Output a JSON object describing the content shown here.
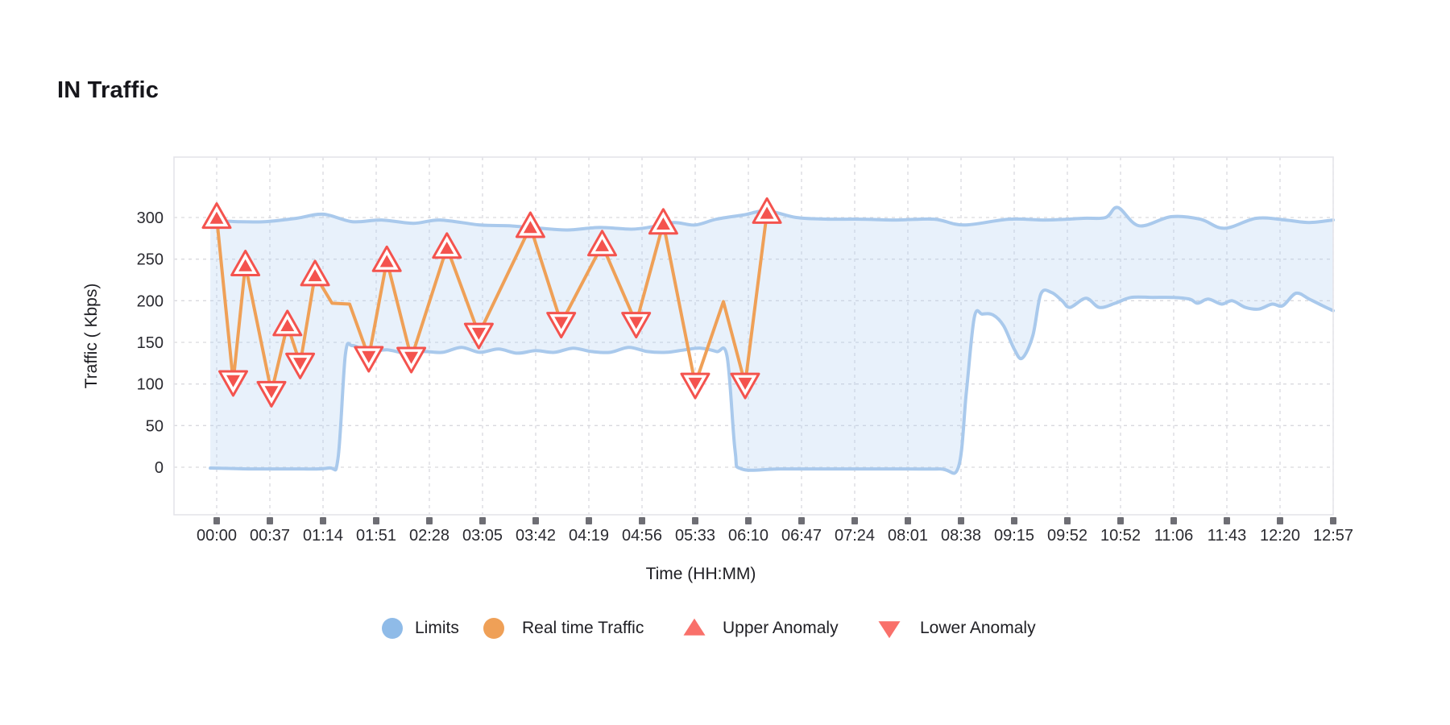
{
  "title": "IN Traffic",
  "legend": {
    "items": [
      {
        "label": "Limits",
        "marker": "circle",
        "color": "#8fbbe8"
      },
      {
        "label": "Real time Traffic",
        "marker": "circle",
        "color": "#efa057"
      },
      {
        "label": "Upper Anomaly",
        "marker": "triangle-up",
        "color": "#f9706a"
      },
      {
        "label": "Lower Anomaly",
        "marker": "triangle-down",
        "color": "#f9706a"
      }
    ]
  },
  "chart_data": {
    "type": "line",
    "title": "IN Traffic",
    "xlabel": "Time (HH:MM)",
    "ylabel": "Traffic ( Kbps)",
    "ylim": [
      0,
      300
    ],
    "grid": true,
    "legend_position": "bottom",
    "y_ticks": [
      300,
      250,
      200,
      150,
      100,
      50,
      0
    ],
    "x_tick_labels": [
      "00:00",
      "00:37",
      "01:14",
      "01:51",
      "02:28",
      "03:05",
      "03:42",
      "04:19",
      "04:56",
      "05:33",
      "06:10",
      "06:47",
      "07:24",
      "08:01",
      "08:38",
      "09:15",
      "09:52",
      "10:52",
      "11:06",
      "11:43",
      "12:20",
      "12:57"
    ],
    "x_unit": "tick-index (0 = first tick)",
    "colors": {
      "band_stroke": "#a9c9ec",
      "band_fill": "rgba(173,205,240,0.28)",
      "line": "#efa057",
      "anomaly": "#f4534e",
      "gridline": "#d9d9de",
      "plot_border": "#e4e4ea",
      "tick_square": "#6e6e74"
    },
    "series": [
      {
        "name": "Limits",
        "kind": "band",
        "upper": [
          [
            -0.12,
            297
          ],
          [
            0.4,
            295
          ],
          [
            0.9,
            295
          ],
          [
            1.5,
            299
          ],
          [
            2.0,
            304
          ],
          [
            2.55,
            295
          ],
          [
            3.1,
            297
          ],
          [
            3.7,
            293
          ],
          [
            4.2,
            297
          ],
          [
            4.95,
            291
          ],
          [
            5.5,
            290
          ],
          [
            6.1,
            287
          ],
          [
            6.6,
            285
          ],
          [
            7.2,
            288
          ],
          [
            7.8,
            286
          ],
          [
            8.2,
            289
          ],
          [
            8.6,
            294
          ],
          [
            9.0,
            291
          ],
          [
            9.4,
            298
          ],
          [
            9.9,
            303
          ],
          [
            10.35,
            308
          ],
          [
            10.9,
            300
          ],
          [
            11.5,
            298
          ],
          [
            12.1,
            298
          ],
          [
            12.8,
            297
          ],
          [
            13.5,
            298
          ],
          [
            14.05,
            291
          ],
          [
            14.9,
            298
          ],
          [
            15.6,
            297
          ],
          [
            16.3,
            299
          ],
          [
            16.72,
            300
          ],
          [
            16.95,
            312
          ],
          [
            17.35,
            290
          ],
          [
            17.95,
            301
          ],
          [
            18.5,
            298
          ],
          [
            18.95,
            287
          ],
          [
            19.55,
            299
          ],
          [
            20.1,
            297
          ],
          [
            20.55,
            294
          ],
          [
            21.0,
            297
          ]
        ],
        "lower": [
          [
            -0.12,
            -1
          ],
          [
            0.6,
            -2
          ],
          [
            1.4,
            -2
          ],
          [
            2.1,
            -1
          ],
          [
            2.28,
            10
          ],
          [
            2.42,
            135
          ],
          [
            2.55,
            146
          ],
          [
            2.85,
            139
          ],
          [
            3.2,
            141
          ],
          [
            3.55,
            137
          ],
          [
            3.9,
            139
          ],
          [
            4.25,
            138
          ],
          [
            4.6,
            144
          ],
          [
            4.95,
            138
          ],
          [
            5.3,
            142
          ],
          [
            5.65,
            137
          ],
          [
            6.0,
            140
          ],
          [
            6.35,
            138
          ],
          [
            6.7,
            143
          ],
          [
            7.05,
            139
          ],
          [
            7.4,
            138
          ],
          [
            7.75,
            144
          ],
          [
            8.1,
            139
          ],
          [
            8.45,
            138
          ],
          [
            8.8,
            141
          ],
          [
            9.1,
            143
          ],
          [
            9.4,
            139
          ],
          [
            9.6,
            133
          ],
          [
            9.75,
            20
          ],
          [
            9.87,
            -2
          ],
          [
            10.6,
            -2
          ],
          [
            11.6,
            -2
          ],
          [
            12.6,
            -2
          ],
          [
            13.6,
            -2
          ],
          [
            13.95,
            0
          ],
          [
            14.1,
            90
          ],
          [
            14.25,
            180
          ],
          [
            14.4,
            184
          ],
          [
            14.6,
            183
          ],
          [
            14.8,
            170
          ],
          [
            15.0,
            142
          ],
          [
            15.15,
            131
          ],
          [
            15.35,
            158
          ],
          [
            15.5,
            208
          ],
          [
            15.7,
            210
          ],
          [
            15.9,
            200
          ],
          [
            16.05,
            192
          ],
          [
            16.35,
            203
          ],
          [
            16.6,
            192
          ],
          [
            16.9,
            197
          ],
          [
            17.2,
            204
          ],
          [
            17.6,
            204
          ],
          [
            18.0,
            204
          ],
          [
            18.3,
            202
          ],
          [
            18.45,
            197
          ],
          [
            18.65,
            202
          ],
          [
            18.9,
            196
          ],
          [
            19.1,
            200
          ],
          [
            19.35,
            192
          ],
          [
            19.6,
            190
          ],
          [
            19.85,
            196
          ],
          [
            20.05,
            194
          ],
          [
            20.3,
            209
          ],
          [
            20.55,
            202
          ],
          [
            20.8,
            194
          ],
          [
            21.0,
            188
          ]
        ]
      },
      {
        "name": "Real time Traffic",
        "kind": "line",
        "points": [
          [
            0.0,
            300,
            "up"
          ],
          [
            0.31,
            103,
            "down"
          ],
          [
            0.54,
            243,
            "up"
          ],
          [
            1.03,
            90,
            "down"
          ],
          [
            1.33,
            171,
            "up"
          ],
          [
            1.57,
            124,
            "down"
          ],
          [
            1.85,
            231,
            "up"
          ],
          [
            2.17,
            197,
            null
          ],
          [
            2.5,
            196,
            null
          ],
          [
            2.86,
            132,
            "down"
          ],
          [
            3.2,
            248,
            "up"
          ],
          [
            3.66,
            131,
            "down"
          ],
          [
            4.33,
            264,
            "up"
          ],
          [
            4.93,
            160,
            "down"
          ],
          [
            5.9,
            289,
            "up"
          ],
          [
            6.48,
            173,
            "down"
          ],
          [
            7.25,
            267,
            "up"
          ],
          [
            7.89,
            173,
            "down"
          ],
          [
            8.4,
            293,
            "up"
          ],
          [
            9.0,
            100,
            "down"
          ],
          [
            9.53,
            199,
            null
          ],
          [
            9.94,
            100,
            "down"
          ],
          [
            10.35,
            306,
            "up"
          ]
        ]
      }
    ]
  }
}
